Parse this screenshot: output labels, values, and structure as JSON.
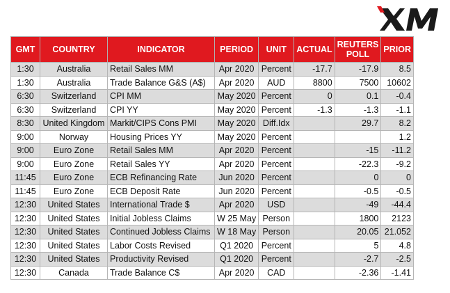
{
  "brand": {
    "logo_text": "XM"
  },
  "headers": {
    "gmt": "GMT",
    "country": "COUNTRY",
    "indicator": "INDICATOR",
    "period": "PERIOD",
    "unit": "UNIT",
    "actual": "ACTUAL",
    "poll": "REUTERS POLL",
    "prior": "PRIOR"
  },
  "rows": [
    {
      "gmt": "1:30",
      "country": "Australia",
      "indicator": "Retail Sales MM",
      "period": "Apr 2020",
      "unit": "Percent",
      "actual": "-17.7",
      "poll": "-17.9",
      "prior": "8.5"
    },
    {
      "gmt": "1:30",
      "country": "Australia",
      "indicator": "Trade Balance G&S (A$)",
      "period": "Apr 2020",
      "unit": "AUD",
      "actual": "8800",
      "poll": "7500",
      "prior": "10602"
    },
    {
      "gmt": "6:30",
      "country": "Switzerland",
      "indicator": "CPI MM",
      "period": "May 2020",
      "unit": "Percent",
      "actual": "0",
      "poll": "0.1",
      "prior": "-0.4"
    },
    {
      "gmt": "6:30",
      "country": "Switzerland",
      "indicator": "CPI YY",
      "period": "May 2020",
      "unit": "Percent",
      "actual": "-1.3",
      "poll": "-1.3",
      "prior": "-1.1"
    },
    {
      "gmt": "8:30",
      "country": "United Kingdom",
      "indicator": "Markit/CIPS Cons PMI",
      "period": "May 2020",
      "unit": "Diff.Idx",
      "actual": "",
      "poll": "29.7",
      "prior": "8.2"
    },
    {
      "gmt": "9:00",
      "country": "Norway",
      "indicator": "Housing Prices YY",
      "period": "May 2020",
      "unit": "Percent",
      "actual": "",
      "poll": "",
      "prior": "1.2"
    },
    {
      "gmt": "9:00",
      "country": "Euro Zone",
      "indicator": "Retail Sales MM",
      "period": "Apr 2020",
      "unit": "Percent",
      "actual": "",
      "poll": "-15",
      "prior": "-11.2"
    },
    {
      "gmt": "9:00",
      "country": "Euro Zone",
      "indicator": "Retail Sales YY",
      "period": "Apr 2020",
      "unit": "Percent",
      "actual": "",
      "poll": "-22.3",
      "prior": "-9.2"
    },
    {
      "gmt": "11:45",
      "country": "Euro Zone",
      "indicator": "ECB Refinancing Rate",
      "period": "Jun 2020",
      "unit": "Percent",
      "actual": "",
      "poll": "0",
      "prior": "0"
    },
    {
      "gmt": "11:45",
      "country": "Euro Zone",
      "indicator": "ECB Deposit Rate",
      "period": "Jun 2020",
      "unit": "Percent",
      "actual": "",
      "poll": "-0.5",
      "prior": "-0.5"
    },
    {
      "gmt": "12:30",
      "country": "United States",
      "indicator": "International Trade $",
      "period": "Apr 2020",
      "unit": "USD",
      "actual": "",
      "poll": "-49",
      "prior": "-44.4"
    },
    {
      "gmt": "12:30",
      "country": "United States",
      "indicator": "Initial Jobless Claims",
      "period": "W 25 May",
      "unit": "Person",
      "actual": "",
      "poll": "1800",
      "prior": "2123"
    },
    {
      "gmt": "12:30",
      "country": "United States",
      "indicator": "Continued Jobless Claims",
      "period": "W 18 May",
      "unit": "Person",
      "actual": "",
      "poll": "20.05",
      "prior": "21.052"
    },
    {
      "gmt": "12:30",
      "country": "United States",
      "indicator": "Labor Costs Revised",
      "period": "Q1 2020",
      "unit": "Percent",
      "actual": "",
      "poll": "5",
      "prior": "4.8"
    },
    {
      "gmt": "12:30",
      "country": "United States",
      "indicator": "Productivity Revised",
      "period": "Q1 2020",
      "unit": "Percent",
      "actual": "",
      "poll": "-2.7",
      "prior": "-2.5"
    },
    {
      "gmt": "12:30",
      "country": "Canada",
      "indicator": "Trade Balance C$",
      "period": "Apr 2020",
      "unit": "CAD",
      "actual": "",
      "poll": "-2.36",
      "prior": "-1.41"
    }
  ]
}
